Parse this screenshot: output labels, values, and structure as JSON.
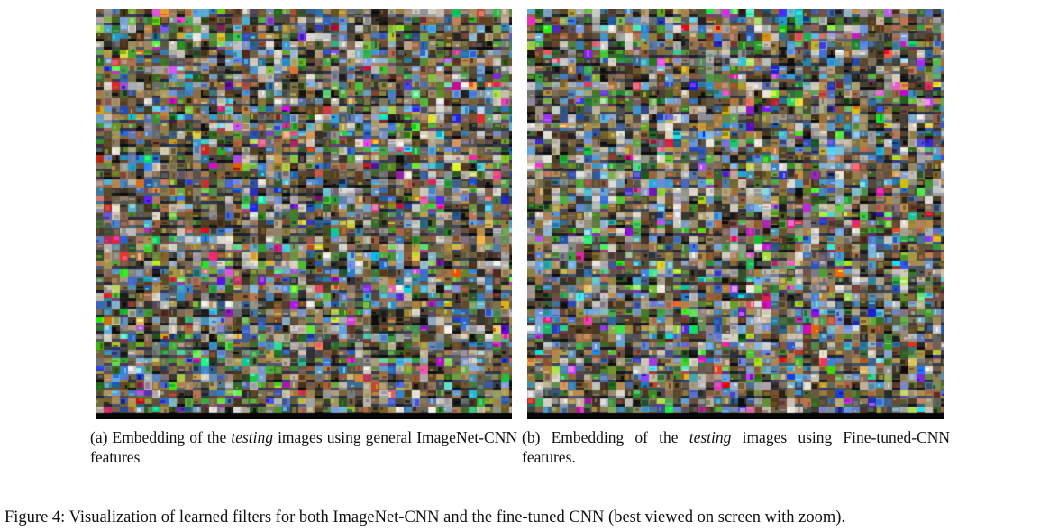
{
  "panels": [
    {
      "id": "a",
      "alt": "Embedding grid of testing images using general ImageNet-CNN features",
      "caption": {
        "label": "(a)",
        "before": "Embedding of the",
        "emph": "testing",
        "after": "images using general ImageNet-CNN features"
      }
    },
    {
      "id": "b",
      "alt": "Embedding grid of testing images using Fine-tuned-CNN features",
      "caption": {
        "label": "(b)",
        "before": "Embedding of the",
        "emph": "testing",
        "after": "images using Fine-tuned-CNN features."
      }
    }
  ],
  "figure_caption": {
    "label": "Figure 4:",
    "text": "Visualization of learned filters for both ImageNet-CNN and the fine-tuned CNN (best viewed on screen with zoom)."
  }
}
